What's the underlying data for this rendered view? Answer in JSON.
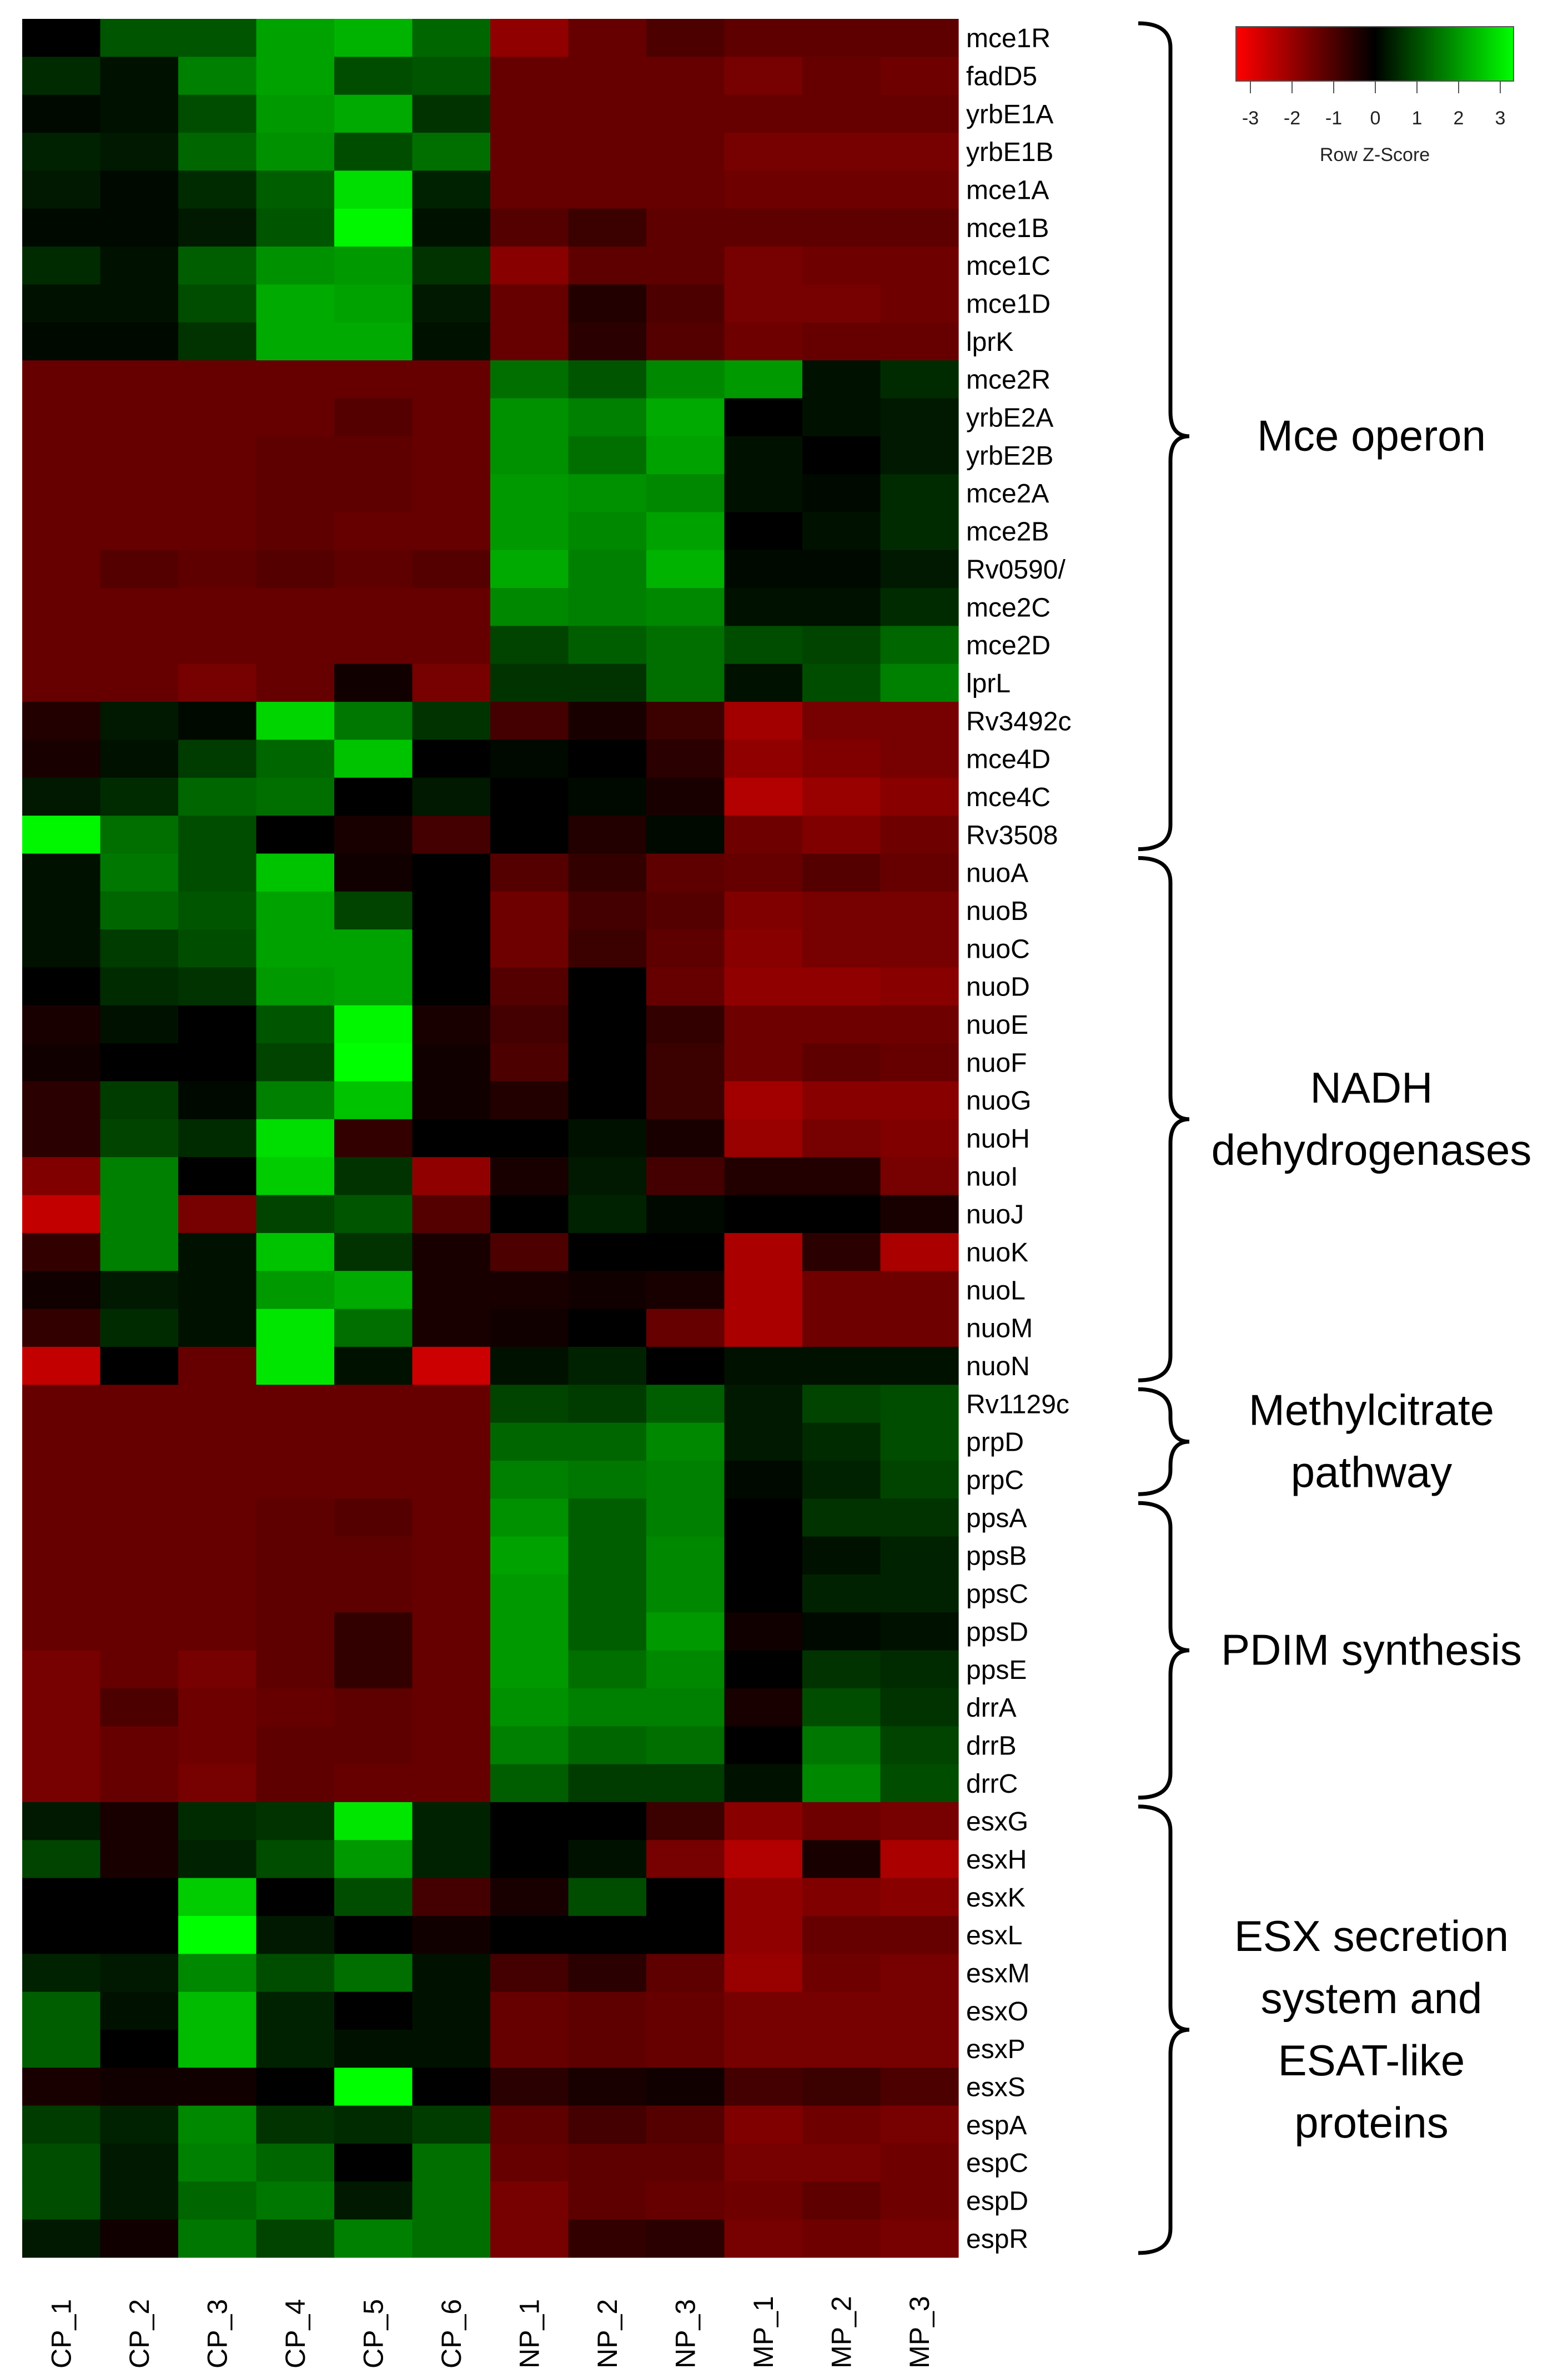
{
  "chart_data": {
    "type": "heatmap",
    "columns": [
      "CP_1",
      "CP_2",
      "CP_3",
      "CP_4",
      "CP_5",
      "CP_6",
      "NP_1",
      "NP_2",
      "NP_3",
      "MP_1",
      "MP_2",
      "MP_3"
    ],
    "rows": [
      "mce1R",
      "fadD5",
      "yrbE1A",
      "yrbE1B",
      "mce1A",
      "mce1B",
      "mce1C",
      "mce1D",
      "lprK",
      "mce2R",
      "yrbE2A",
      "yrbE2B",
      "mce2A",
      "mce2B",
      "Rv0590/",
      "mce2C",
      "mce2D",
      "lprL",
      "Rv3492c",
      "mce4D",
      "mce4C",
      "Rv3508",
      "nuoA",
      "nuoB",
      "nuoC",
      "nuoD",
      "nuoE",
      "nuoF",
      "nuoG",
      "nuoH",
      "nuoI",
      "nuoJ",
      "nuoK",
      "nuoL",
      "nuoM",
      "nuoN",
      "Rv1129c",
      "prpD",
      "prpC",
      "ppsA",
      "ppsB",
      "ppsC",
      "ppsD",
      "ppsE",
      "drrA",
      "drrB",
      "drrC",
      "esxG",
      "esxH",
      "esxK",
      "esxL",
      "esxM",
      "esxO",
      "esxP",
      "esxS",
      "espA",
      "espC",
      "espD",
      "espR"
    ],
    "values": [
      [
        0.0,
        1.0,
        1.0,
        1.9,
        2.1,
        1.2,
        -1.7,
        -1.2,
        -0.9,
        -1.1,
        -1.1,
        -1.1
      ],
      [
        0.5,
        0.2,
        1.5,
        1.9,
        0.9,
        1.0,
        -1.2,
        -1.2,
        -1.2,
        -1.4,
        -1.2,
        -1.3
      ],
      [
        0.1,
        0.2,
        0.9,
        1.8,
        2.0,
        0.6,
        -1.2,
        -1.2,
        -1.2,
        -1.2,
        -1.2,
        -1.2
      ],
      [
        0.4,
        0.3,
        1.2,
        1.7,
        0.9,
        1.3,
        -1.2,
        -1.2,
        -1.2,
        -1.4,
        -1.4,
        -1.4
      ],
      [
        0.3,
        0.1,
        0.5,
        1.1,
        2.6,
        0.4,
        -1.2,
        -1.2,
        -1.2,
        -1.3,
        -1.3,
        -1.3
      ],
      [
        0.1,
        0.1,
        0.3,
        1.0,
        2.9,
        0.2,
        -1.0,
        -0.7,
        -1.1,
        -1.1,
        -1.1,
        -1.1
      ],
      [
        0.5,
        0.2,
        1.1,
        1.7,
        1.8,
        0.6,
        -1.6,
        -1.1,
        -1.1,
        -1.4,
        -1.3,
        -1.3
      ],
      [
        0.2,
        0.2,
        0.9,
        2.0,
        1.9,
        0.3,
        -1.2,
        -0.4,
        -0.9,
        -1.4,
        -1.4,
        -1.3
      ],
      [
        0.1,
        0.1,
        0.6,
        2.0,
        2.0,
        0.2,
        -1.2,
        -0.5,
        -1.0,
        -1.3,
        -1.2,
        -1.2
      ],
      [
        -1.2,
        -1.2,
        -1.2,
        -1.2,
        -1.2,
        -1.2,
        1.3,
        1.0,
        1.6,
        1.8,
        0.2,
        0.5
      ],
      [
        -1.2,
        -1.2,
        -1.2,
        -1.2,
        -1.0,
        -1.2,
        1.7,
        1.5,
        2.0,
        0.0,
        0.2,
        0.3
      ],
      [
        -1.2,
        -1.2,
        -1.2,
        -1.1,
        -1.1,
        -1.2,
        1.7,
        1.3,
        1.9,
        0.2,
        0.0,
        0.3
      ],
      [
        -1.2,
        -1.2,
        -1.2,
        -1.1,
        -1.1,
        -1.2,
        1.8,
        1.7,
        1.6,
        0.2,
        0.1,
        0.5
      ],
      [
        -1.2,
        -1.2,
        -1.2,
        -1.1,
        -1.2,
        -1.2,
        1.8,
        1.6,
        1.9,
        0.0,
        0.2,
        0.5
      ],
      [
        -1.2,
        -1.0,
        -1.1,
        -1.0,
        -1.1,
        -1.0,
        2.0,
        1.5,
        2.1,
        0.1,
        0.1,
        0.3
      ],
      [
        -1.2,
        -1.2,
        -1.2,
        -1.2,
        -1.2,
        -1.2,
        1.6,
        1.5,
        1.6,
        0.2,
        0.2,
        0.5
      ],
      [
        -1.2,
        -1.2,
        -1.2,
        -1.2,
        -1.2,
        -1.2,
        0.8,
        1.1,
        1.3,
        0.9,
        0.8,
        1.2
      ],
      [
        -1.2,
        -1.2,
        -1.4,
        -1.2,
        -0.2,
        -1.4,
        0.6,
        0.6,
        1.3,
        0.2,
        0.9,
        1.5
      ],
      [
        -0.4,
        0.3,
        0.1,
        2.5,
        1.4,
        0.6,
        -0.8,
        -0.3,
        -0.7,
        -1.9,
        -1.4,
        -1.4
      ],
      [
        -0.3,
        0.2,
        0.7,
        1.2,
        2.3,
        0.0,
        0.1,
        0.0,
        -0.5,
        -1.7,
        -1.5,
        -1.4
      ],
      [
        0.3,
        0.5,
        1.2,
        1.3,
        0.0,
        0.3,
        0.0,
        0.1,
        -0.3,
        -2.1,
        -1.8,
        -1.6
      ],
      [
        2.9,
        1.3,
        0.9,
        0.0,
        -0.3,
        -0.8,
        0.0,
        -0.4,
        0.1,
        -1.3,
        -1.5,
        -1.3
      ],
      [
        0.2,
        1.4,
        0.9,
        2.3,
        -0.2,
        0.0,
        -1.0,
        -0.6,
        -1.1,
        -1.2,
        -1.0,
        -1.2
      ],
      [
        0.2,
        1.2,
        1.0,
        1.9,
        0.8,
        0.0,
        -1.3,
        -0.8,
        -1.0,
        -1.5,
        -1.4,
        -1.4
      ],
      [
        0.2,
        0.7,
        0.9,
        1.9,
        1.9,
        0.0,
        -1.3,
        -0.7,
        -1.1,
        -1.6,
        -1.4,
        -1.4
      ],
      [
        0.0,
        0.5,
        0.6,
        1.8,
        1.9,
        0.0,
        -1.0,
        0.0,
        -1.2,
        -1.7,
        -1.7,
        -1.6
      ],
      [
        -0.3,
        0.2,
        0.0,
        1.0,
        2.9,
        -0.3,
        -0.8,
        0.0,
        -0.6,
        -1.3,
        -1.3,
        -1.3
      ],
      [
        -0.2,
        0.0,
        0.0,
        0.8,
        3.0,
        -0.2,
        -0.9,
        0.0,
        -0.7,
        -1.3,
        -1.1,
        -1.2
      ],
      [
        -0.5,
        0.7,
        0.1,
        1.5,
        2.3,
        -0.2,
        -0.4,
        0.0,
        -0.7,
        -1.9,
        -1.6,
        -1.6
      ],
      [
        -0.5,
        0.8,
        0.5,
        2.6,
        -0.6,
        0.0,
        0.0,
        0.2,
        -0.3,
        -1.8,
        -1.4,
        -1.5
      ],
      [
        -1.5,
        1.5,
        0.0,
        2.4,
        0.6,
        -1.7,
        -0.3,
        0.3,
        -0.8,
        -0.4,
        -0.4,
        -1.4
      ],
      [
        -2.3,
        1.5,
        -1.4,
        0.8,
        1.0,
        -1.0,
        0.0,
        0.4,
        0.1,
        0.0,
        0.0,
        -0.3
      ],
      [
        -0.6,
        1.5,
        0.2,
        2.3,
        0.6,
        -0.3,
        -0.9,
        0.0,
        0.0,
        -2.0,
        -0.5,
        -2.0
      ],
      [
        -0.2,
        0.3,
        0.2,
        1.8,
        2.0,
        -0.3,
        -0.3,
        -0.2,
        -0.3,
        -2.0,
        -1.3,
        -1.3
      ],
      [
        -0.6,
        0.5,
        0.2,
        2.7,
        1.3,
        -0.3,
        -0.2,
        0.0,
        -1.2,
        -2.0,
        -1.3,
        -1.3
      ],
      [
        -2.3,
        0.0,
        -1.2,
        2.7,
        0.2,
        -2.4,
        0.2,
        0.4,
        0.0,
        0.2,
        0.2,
        0.2
      ],
      [
        -1.2,
        -1.2,
        -1.2,
        -1.2,
        -1.2,
        -1.2,
        0.8,
        0.7,
        1.1,
        0.3,
        0.8,
        0.9
      ],
      [
        -1.2,
        -1.2,
        -1.2,
        -1.2,
        -1.2,
        -1.2,
        1.2,
        1.2,
        1.6,
        0.3,
        0.5,
        0.9
      ],
      [
        -1.2,
        -1.2,
        -1.2,
        -1.2,
        -1.2,
        -1.2,
        1.5,
        1.4,
        1.5,
        0.1,
        0.4,
        0.8
      ],
      [
        -1.2,
        -1.2,
        -1.2,
        -1.1,
        -1.0,
        -1.2,
        1.7,
        1.1,
        1.5,
        0.0,
        0.6,
        0.6
      ],
      [
        -1.2,
        -1.2,
        -1.2,
        -1.1,
        -1.1,
        -1.2,
        1.9,
        1.1,
        1.6,
        0.0,
        0.2,
        0.4
      ],
      [
        -1.2,
        -1.2,
        -1.2,
        -1.1,
        -1.1,
        -1.2,
        1.8,
        1.1,
        1.6,
        0.0,
        0.4,
        0.4
      ],
      [
        -1.2,
        -1.2,
        -1.2,
        -1.1,
        -0.6,
        -1.2,
        1.8,
        1.1,
        1.8,
        -0.2,
        0.1,
        0.2
      ],
      [
        -1.4,
        -1.2,
        -1.4,
        -1.1,
        -0.6,
        -1.2,
        1.8,
        1.3,
        1.6,
        0.0,
        0.6,
        0.5
      ],
      [
        -1.4,
        -0.9,
        -1.3,
        -1.2,
        -1.1,
        -1.2,
        1.7,
        1.5,
        1.5,
        -0.3,
        0.9,
        0.6
      ],
      [
        -1.4,
        -1.2,
        -1.3,
        -1.1,
        -1.1,
        -1.2,
        1.5,
        1.2,
        1.3,
        0.0,
        1.4,
        0.8
      ],
      [
        -1.4,
        -1.2,
        -1.4,
        -1.1,
        -1.2,
        -1.2,
        1.1,
        0.7,
        0.7,
        0.2,
        1.6,
        0.9
      ],
      [
        0.3,
        -0.3,
        0.5,
        0.6,
        2.7,
        0.4,
        0.0,
        0.0,
        -0.7,
        -1.6,
        -1.3,
        -1.4
      ],
      [
        0.8,
        -0.3,
        0.4,
        0.9,
        1.8,
        0.4,
        0.0,
        0.2,
        -1.4,
        -2.1,
        -0.3,
        -2.0
      ],
      [
        0.0,
        0.0,
        2.4,
        0.0,
        0.9,
        -0.8,
        -0.3,
        0.9,
        0.0,
        -1.7,
        -1.5,
        -1.6
      ],
      [
        0.0,
        0.0,
        3.0,
        0.3,
        0.0,
        -0.2,
        0.0,
        0.0,
        0.0,
        -1.7,
        -1.2,
        -1.2
      ],
      [
        0.4,
        0.3,
        1.6,
        0.9,
        1.3,
        0.2,
        -0.8,
        -0.5,
        -1.1,
        -1.8,
        -1.3,
        -1.4
      ],
      [
        1.1,
        0.2,
        2.2,
        0.4,
        0.0,
        0.2,
        -1.2,
        -1.1,
        -1.2,
        -1.4,
        -1.4,
        -1.4
      ],
      [
        1.1,
        0.0,
        2.2,
        0.4,
        0.2,
        0.2,
        -1.2,
        -1.1,
        -1.2,
        -1.4,
        -1.4,
        -1.4
      ],
      [
        -0.3,
        -0.2,
        -0.2,
        0.0,
        3.0,
        0.0,
        -0.5,
        -0.3,
        -0.2,
        -0.8,
        -0.7,
        -0.9
      ],
      [
        0.7,
        0.4,
        1.6,
        0.6,
        0.5,
        0.7,
        -1.1,
        -0.8,
        -1.0,
        -1.5,
        -1.3,
        -1.4
      ],
      [
        0.9,
        0.3,
        1.5,
        1.2,
        0.0,
        1.3,
        -1.2,
        -1.1,
        -1.1,
        -1.4,
        -1.4,
        -1.3
      ],
      [
        0.9,
        0.3,
        1.2,
        1.4,
        0.3,
        1.3,
        -1.4,
        -1.1,
        -1.2,
        -1.3,
        -1.1,
        -1.3
      ],
      [
        0.3,
        -0.2,
        1.4,
        0.8,
        1.5,
        1.3,
        -1.4,
        -0.6,
        -0.5,
        -1.4,
        -1.3,
        -1.4
      ]
    ],
    "groups": [
      {
        "label": [
          "Mce operon"
        ],
        "start": 0,
        "end": 21
      },
      {
        "label": [
          "NADH",
          "dehydrogenases"
        ],
        "start": 22,
        "end": 35
      },
      {
        "label": [
          "Methylcitrate",
          "pathway"
        ],
        "start": 36,
        "end": 38
      },
      {
        "label": [
          "PDIM synthesis"
        ],
        "start": 39,
        "end": 46
      },
      {
        "label": [
          "ESX secretion",
          "system and",
          "ESAT-like",
          "proteins"
        ],
        "start": 47,
        "end": 58
      }
    ],
    "legend": {
      "ticks": [
        -3,
        -2,
        -1,
        0,
        1,
        2,
        3
      ],
      "title": "Row Z-Score",
      "colors": {
        "low": "#ff0000",
        "mid": "#000000",
        "high": "#00ff00"
      }
    }
  }
}
